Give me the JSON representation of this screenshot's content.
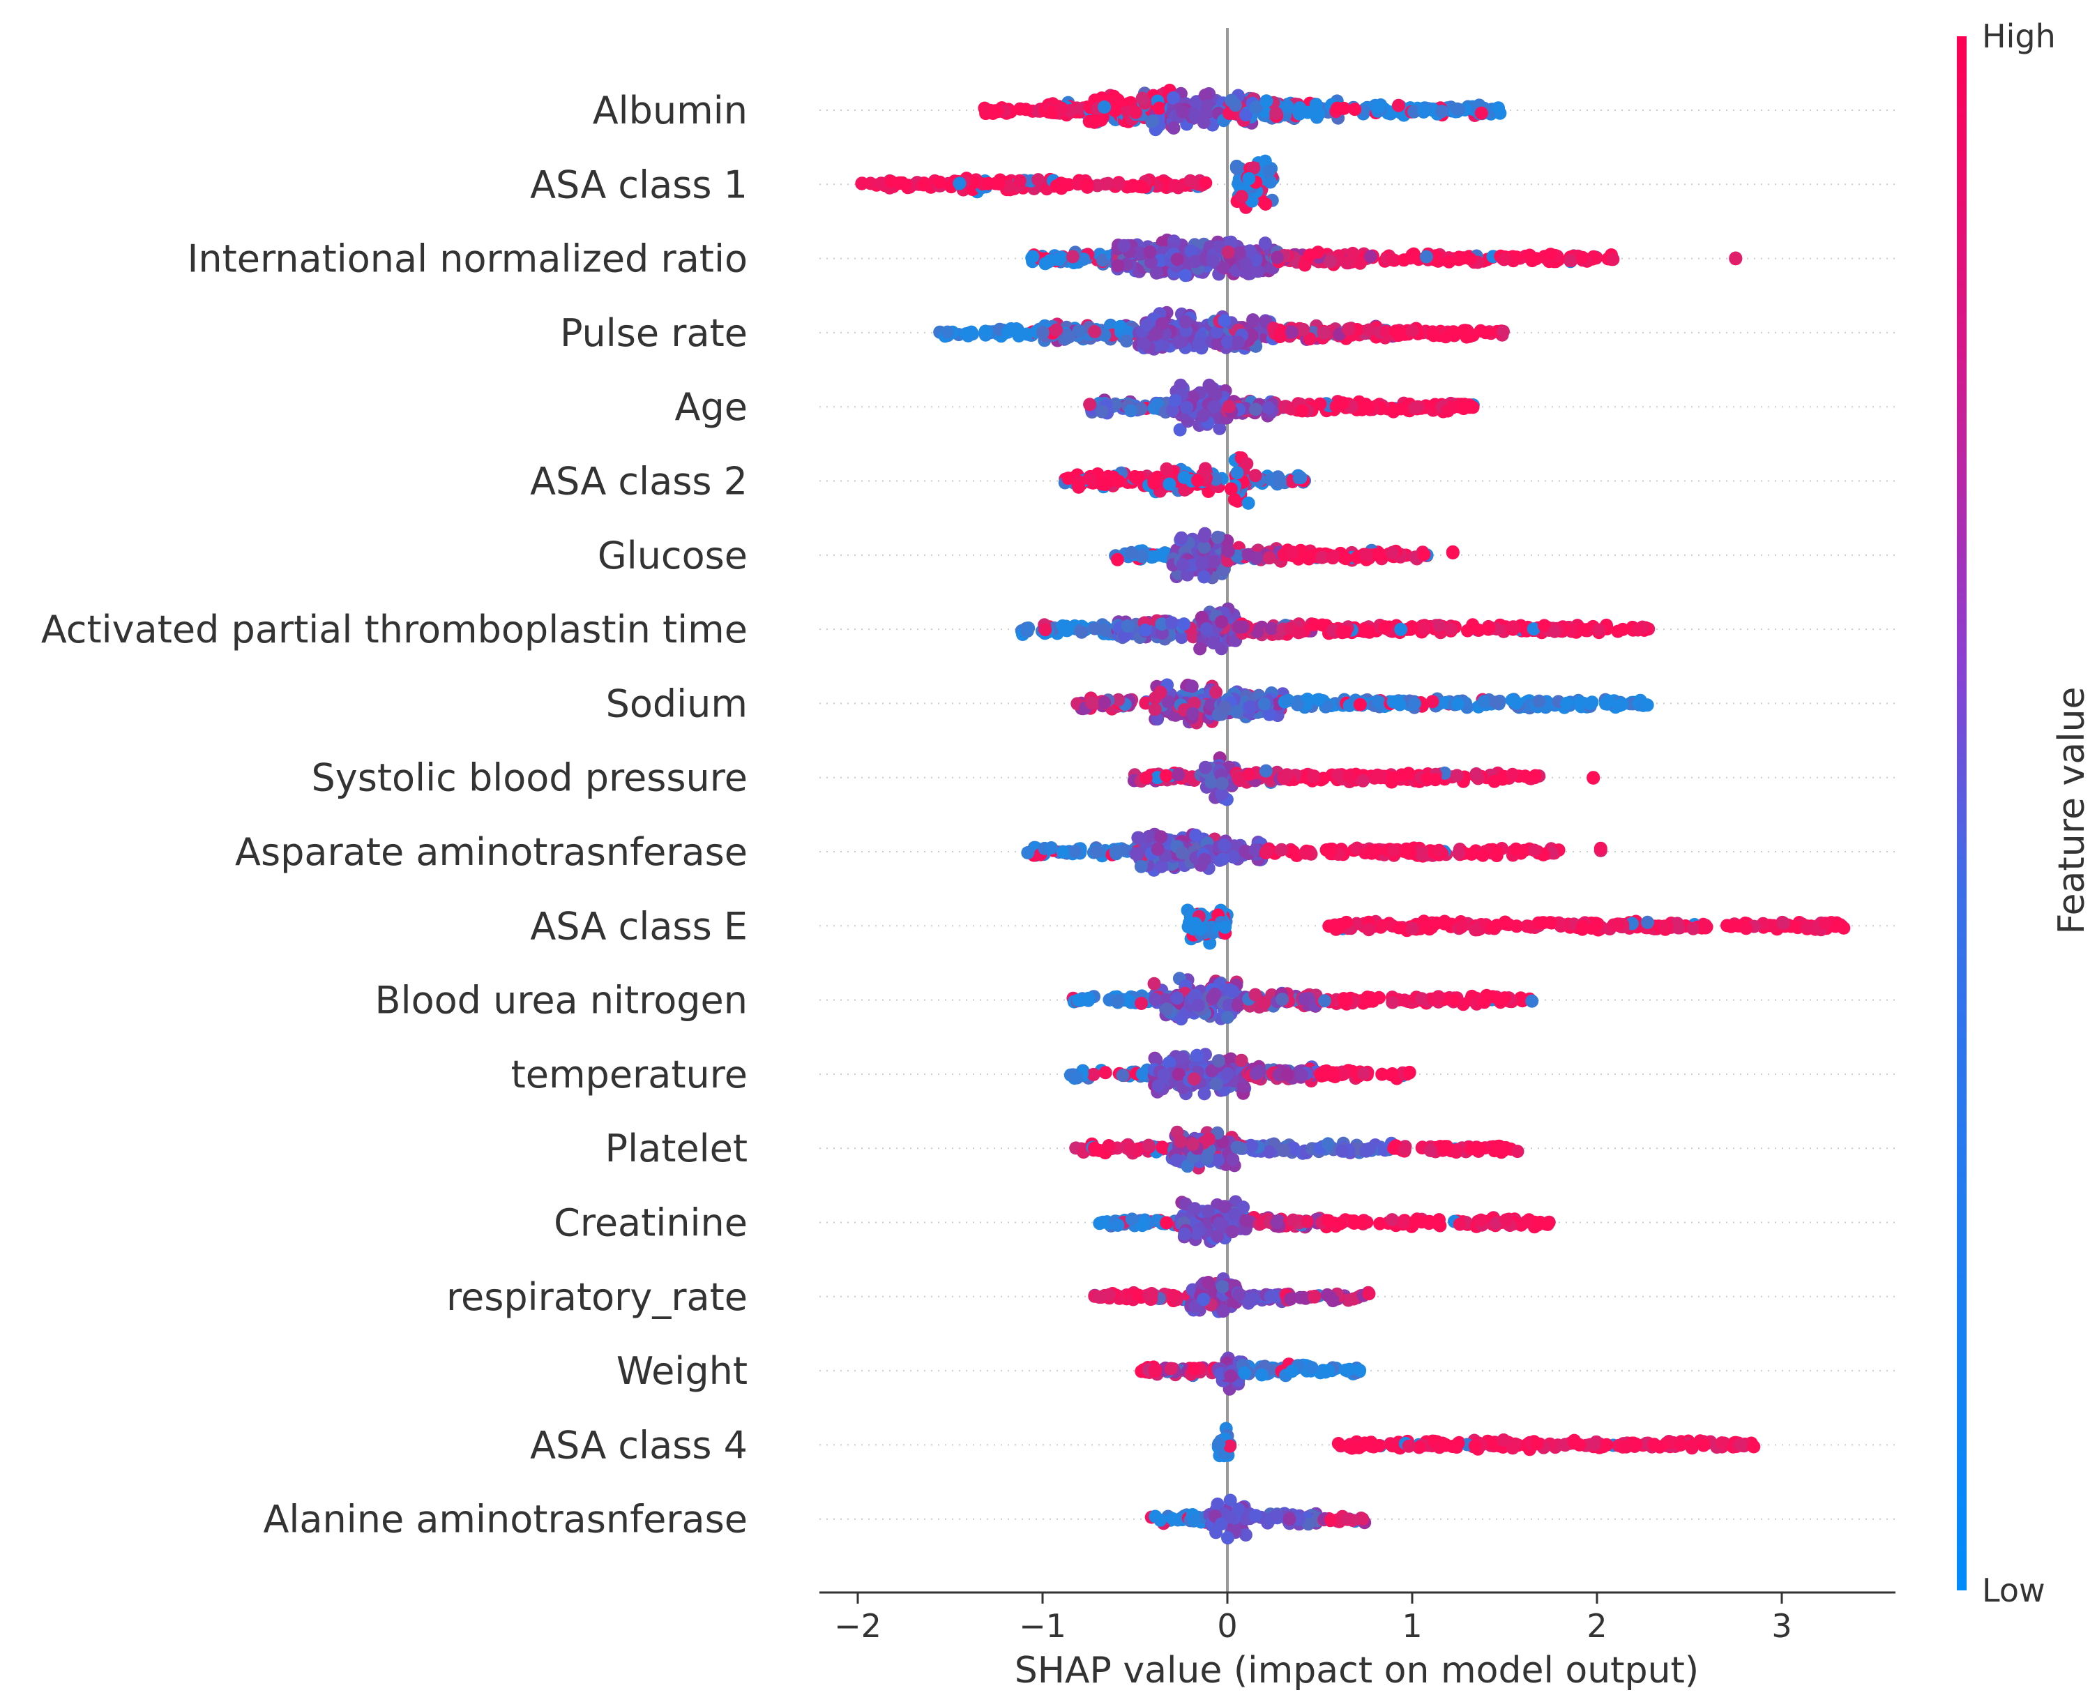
{
  "chart_data": {
    "type": "scatter",
    "subtype": "shap-beeswarm",
    "title": "",
    "xlabel": "SHAP value (impact on model output)",
    "ylabel": "",
    "xlim": [
      -2.2,
      3.6
    ],
    "xticks": [
      -2,
      -1,
      0,
      1,
      2,
      3
    ],
    "xtick_labels": [
      "−2",
      "−1",
      "0",
      "1",
      "2",
      "3"
    ],
    "grid": false,
    "colors": {
      "low": "#1e88e5",
      "high": "#ff0d57"
    },
    "colorbar": {
      "title": "Feature value",
      "high_label": "High",
      "low_label": "Low"
    },
    "features": [
      {
        "name": "Albumin ",
        "segments": [
          [
            -1.32,
            -1.0,
            1,
            0.05,
            0.05
          ],
          [
            -1.0,
            -0.75,
            1,
            0.2,
            0.15
          ],
          [
            -0.75,
            -0.5,
            1,
            0.45,
            0.3
          ],
          [
            -0.5,
            -0.3,
            0.85,
            0.55,
            0.45
          ],
          [
            -0.3,
            -0.05,
            0.55,
            0.45,
            0.55
          ],
          [
            -0.05,
            0.15,
            0.2,
            0.4,
            0.45
          ],
          [
            0.15,
            0.6,
            0.05,
            0.25,
            0.25
          ],
          [
            0.6,
            1.48,
            0,
            0.1,
            0.1
          ]
        ]
      },
      {
        "name": "ASA class 1",
        "segments": [
          [
            -1.98,
            -1.5,
            1,
            0.05,
            0.05
          ],
          [
            -1.5,
            -0.95,
            1,
            0.15,
            0.12
          ],
          [
            -0.95,
            -0.08,
            1,
            0.06,
            0.04
          ],
          [
            0.05,
            0.25,
            0,
            0.6,
            0.3
          ]
        ]
      },
      {
        "name": "International normalized ratio",
        "segments": [
          [
            -1.06,
            -0.6,
            0.05,
            0.12,
            0.15
          ],
          [
            -0.6,
            -0.1,
            0.4,
            0.5,
            0.55
          ],
          [
            -0.1,
            0.25,
            0.6,
            0.5,
            0.3
          ],
          [
            0.25,
            0.8,
            0.85,
            0.15,
            0.1
          ],
          [
            0.8,
            2.1,
            1,
            0.06,
            0.03
          ],
          [
            2.75,
            2.75,
            1,
            0.05,
            0
          ]
        ]
      },
      {
        "name": "Pulse rate",
        "segments": [
          [
            -1.58,
            -1.0,
            0,
            0.06,
            0.05
          ],
          [
            -1.0,
            -0.5,
            0.15,
            0.2,
            0.2
          ],
          [
            -0.5,
            -0.1,
            0.5,
            0.5,
            0.55
          ],
          [
            -0.1,
            0.25,
            0.65,
            0.45,
            0.3
          ],
          [
            0.25,
            0.9,
            0.85,
            0.12,
            0.1
          ],
          [
            0.9,
            1.5,
            1,
            0.06,
            0.03
          ]
        ]
      },
      {
        "name": "Age",
        "segments": [
          [
            -0.75,
            -0.3,
            0.2,
            0.12,
            0.15
          ],
          [
            -0.3,
            0.0,
            0.5,
            0.6,
            0.35
          ],
          [
            0.0,
            0.3,
            0.7,
            0.2,
            0.2
          ],
          [
            0.3,
            1.33,
            1,
            0.1,
            0.05
          ]
        ]
      },
      {
        "name": "ASA class 2",
        "segments": [
          [
            -0.88,
            -0.4,
            1,
            0.15,
            0.2
          ],
          [
            -0.4,
            -0.02,
            1,
            0.3,
            0.3
          ],
          [
            0.02,
            0.12,
            0,
            0.65,
            0.3
          ],
          [
            0.12,
            0.42,
            0,
            0.1,
            0.08
          ]
        ]
      },
      {
        "name": "Glucose",
        "segments": [
          [
            -0.65,
            -0.3,
            0,
            0.08,
            0.08
          ],
          [
            -0.3,
            0.0,
            0.4,
            0.65,
            0.35
          ],
          [
            0.0,
            0.3,
            0.75,
            0.15,
            0.12
          ],
          [
            0.3,
            1.1,
            1,
            0.08,
            0.05
          ],
          [
            1.22,
            1.22,
            1,
            0.04,
            0
          ]
        ]
      },
      {
        "name": "Activated partial thromboplastin time",
        "segments": [
          [
            -1.12,
            -0.6,
            0.05,
            0.08,
            0.08
          ],
          [
            -0.6,
            -0.15,
            0.3,
            0.25,
            0.3
          ],
          [
            -0.15,
            0.05,
            0.6,
            0.55,
            0.25
          ],
          [
            0.05,
            0.5,
            0.85,
            0.12,
            0.08
          ],
          [
            0.5,
            2.3,
            1,
            0.06,
            0.03
          ]
        ]
      },
      {
        "name": "Sodium",
        "segments": [
          [
            -0.82,
            -0.4,
            0.85,
            0.1,
            0.12
          ],
          [
            -0.4,
            -0.05,
            0.7,
            0.55,
            0.35
          ],
          [
            -0.05,
            0.3,
            0.3,
            0.35,
            0.2
          ],
          [
            0.3,
            1.9,
            0.05,
            0.07,
            0.05
          ],
          [
            1.9,
            2.32,
            0,
            0.05,
            0
          ]
        ]
      },
      {
        "name": "Systolic blood pressure",
        "segments": [
          [
            -0.52,
            -0.12,
            0.85,
            0.08,
            0.08
          ],
          [
            -0.12,
            0.05,
            0.4,
            0.6,
            0.3
          ],
          [
            0.05,
            0.3,
            0.8,
            0.12,
            0.12
          ],
          [
            0.3,
            1.7,
            1,
            0.06,
            0.03
          ],
          [
            1.98,
            1.98,
            1,
            0.04,
            0
          ]
        ]
      },
      {
        "name": "Asparate aminotrasnferase",
        "segments": [
          [
            -1.1,
            -0.5,
            0.05,
            0.07,
            0.08
          ],
          [
            -0.5,
            -0.05,
            0.35,
            0.5,
            0.35
          ],
          [
            -0.05,
            0.2,
            0.55,
            0.3,
            0.2
          ],
          [
            0.2,
            1.8,
            1,
            0.06,
            0.03
          ],
          [
            2.02,
            2.02,
            1,
            0.04,
            0
          ]
        ]
      },
      {
        "name": "ASA class E",
        "segments": [
          [
            -0.22,
            0.0,
            0,
            0.5,
            0.15
          ],
          [
            0.53,
            2.6,
            1,
            0.07,
            0.03
          ],
          [
            2.7,
            3.35,
            1,
            0.04,
            0
          ]
        ]
      },
      {
        "name": "Blood urea nitrogen",
        "segments": [
          [
            -0.85,
            -0.4,
            0,
            0.06,
            0.08
          ],
          [
            -0.4,
            0.05,
            0.35,
            0.55,
            0.3
          ],
          [
            0.05,
            0.5,
            0.7,
            0.15,
            0.15
          ],
          [
            0.5,
            1.65,
            1,
            0.06,
            0.03
          ]
        ]
      },
      {
        "name": "temperature",
        "segments": [
          [
            -0.85,
            -0.4,
            0.05,
            0.06,
            0.08
          ],
          [
            -0.4,
            0.1,
            0.4,
            0.55,
            0.3
          ],
          [
            0.1,
            0.5,
            0.75,
            0.15,
            0.15
          ],
          [
            0.5,
            1.0,
            1,
            0.06,
            0.03
          ]
        ]
      },
      {
        "name": "Platelet",
        "segments": [
          [
            -0.82,
            -0.3,
            0.9,
            0.07,
            0.08
          ],
          [
            -0.3,
            0.05,
            0.7,
            0.5,
            0.3
          ],
          [
            0.05,
            0.9,
            0.3,
            0.08,
            0.05
          ],
          [
            0.9,
            1.57,
            1,
            0.06,
            0.03
          ]
        ]
      },
      {
        "name": "Creatinine",
        "segments": [
          [
            -0.7,
            -0.25,
            0.05,
            0.07,
            0.08
          ],
          [
            -0.25,
            0.1,
            0.45,
            0.55,
            0.3
          ],
          [
            0.1,
            0.5,
            0.8,
            0.12,
            0.12
          ],
          [
            0.5,
            1.75,
            1,
            0.06,
            0.03
          ]
        ]
      },
      {
        "name": "respiratory_rate",
        "segments": [
          [
            -0.72,
            -0.2,
            0.85,
            0.07,
            0.08
          ],
          [
            -0.2,
            0.05,
            0.6,
            0.5,
            0.25
          ],
          [
            0.05,
            0.3,
            0.5,
            0.12,
            0.1
          ],
          [
            0.3,
            0.78,
            0.8,
            0.05,
            0.03
          ]
        ]
      },
      {
        "name": "Weight",
        "segments": [
          [
            -0.47,
            -0.05,
            0.85,
            0.08,
            0.1
          ],
          [
            -0.05,
            0.08,
            0.55,
            0.5,
            0.2
          ],
          [
            0.08,
            0.45,
            0.05,
            0.12,
            0.08
          ],
          [
            0.45,
            0.72,
            0,
            0.05,
            0.03
          ]
        ]
      },
      {
        "name": "ASA class 4",
        "segments": [
          [
            -0.05,
            0.02,
            0,
            0.45,
            0.2
          ],
          [
            0.6,
            2.3,
            1,
            0.07,
            0.03
          ],
          [
            2.3,
            2.87,
            1,
            0.04,
            0
          ]
        ]
      },
      {
        "name": "Alanine aminotrasnferase",
        "segments": [
          [
            -0.42,
            -0.1,
            0.05,
            0.07,
            0.1
          ],
          [
            -0.1,
            0.1,
            0.5,
            0.55,
            0.2
          ],
          [
            0.1,
            0.5,
            0.4,
            0.12,
            0.1
          ],
          [
            0.5,
            0.75,
            0.85,
            0.05,
            0.03
          ]
        ]
      }
    ]
  }
}
